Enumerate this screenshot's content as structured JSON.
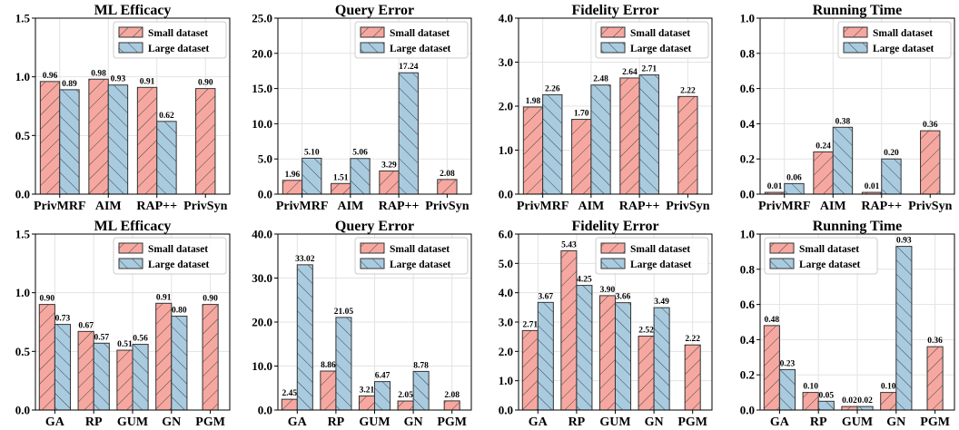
{
  "colors": {
    "small": "#f6a8a0",
    "large": "#a9cbe0",
    "grid": "#e3e3e3",
    "edge": "#333333"
  },
  "legend_labels": [
    "Small dataset",
    "Large dataset"
  ],
  "chart_data": [
    {
      "type": "bar",
      "title": "ML Efficacy",
      "categories": [
        "PrivMRF",
        "AIM",
        "RAP++",
        "PrivSyn"
      ],
      "ylim": [
        0,
        1.5
      ],
      "yticks": [
        "0.0",
        "0.5",
        "1.0",
        "1.5"
      ],
      "legend": "top-right",
      "grid": true,
      "series": [
        {
          "name": "Small dataset",
          "values": [
            0.96,
            0.98,
            0.91,
            0.9
          ],
          "labels": [
            "0.96",
            "0.98",
            "0.91",
            "0.90"
          ]
        },
        {
          "name": "Large dataset",
          "values": [
            0.89,
            0.93,
            0.62,
            null
          ],
          "labels": [
            "0.89",
            "0.93",
            "0.62",
            ""
          ]
        }
      ]
    },
    {
      "type": "bar",
      "title": "Query Error",
      "categories": [
        "PrivMRF",
        "AIM",
        "RAP++",
        "PrivSyn"
      ],
      "ylim": [
        0,
        25
      ],
      "yticks": [
        "0.0",
        "5.0",
        "10.0",
        "15.0",
        "20.0",
        "25.0"
      ],
      "legend": "top-right",
      "grid": true,
      "series": [
        {
          "name": "Small dataset",
          "values": [
            1.96,
            1.51,
            3.29,
            2.08
          ],
          "labels": [
            "1.96",
            "1.51",
            "3.29",
            "2.08"
          ]
        },
        {
          "name": "Large dataset",
          "values": [
            5.1,
            5.06,
            17.24,
            null
          ],
          "labels": [
            "5.10",
            "5.06",
            "17.24",
            ""
          ]
        }
      ]
    },
    {
      "type": "bar",
      "title": "Fidelity Error",
      "categories": [
        "PrivMRF",
        "AIM",
        "RAP++",
        "PrivSyn"
      ],
      "ylim": [
        0,
        4
      ],
      "yticks": [
        "0.0",
        "1.0",
        "2.0",
        "3.0",
        "4.0"
      ],
      "legend": "top-right",
      "grid": true,
      "series": [
        {
          "name": "Small dataset",
          "values": [
            1.98,
            1.7,
            2.64,
            2.22
          ],
          "labels": [
            "1.98",
            "1.70",
            "2.64",
            "2.22"
          ]
        },
        {
          "name": "Large dataset",
          "values": [
            2.26,
            2.48,
            2.71,
            null
          ],
          "labels": [
            "2.26",
            "2.48",
            "2.71",
            ""
          ]
        }
      ]
    },
    {
      "type": "bar",
      "title": "Running Time",
      "categories": [
        "PrivMRF",
        "AIM",
        "RAP++",
        "PrivSyn"
      ],
      "ylim": [
        0,
        1
      ],
      "yticks": [
        "0.0",
        "0.2",
        "0.4",
        "0.6",
        "0.8",
        "1.0"
      ],
      "legend": "top-right",
      "grid": true,
      "series": [
        {
          "name": "Small dataset",
          "values": [
            0.01,
            0.24,
            0.01,
            0.36
          ],
          "labels": [
            "0.01",
            "0.24",
            "0.01",
            "0.36"
          ]
        },
        {
          "name": "Large dataset",
          "values": [
            0.06,
            0.38,
            0.2,
            null
          ],
          "labels": [
            "0.06",
            "0.38",
            "0.20",
            ""
          ]
        }
      ]
    },
    {
      "type": "bar",
      "title": "ML Efficacy",
      "categories": [
        "GA",
        "RP",
        "GUM",
        "GN",
        "PGM"
      ],
      "ylim": [
        0,
        1.5
      ],
      "yticks": [
        "0.0",
        "0.5",
        "1.0",
        "1.5"
      ],
      "legend": "top-right",
      "grid": true,
      "series": [
        {
          "name": "Small dataset",
          "values": [
            0.9,
            0.67,
            0.51,
            0.91,
            0.9
          ],
          "labels": [
            "0.90",
            "0.67",
            "0.51",
            "0.91",
            "0.90"
          ]
        },
        {
          "name": "Large dataset",
          "values": [
            0.73,
            0.57,
            0.56,
            0.8,
            null
          ],
          "labels": [
            "0.73",
            "0.57",
            "0.56",
            "0.80",
            ""
          ]
        }
      ]
    },
    {
      "type": "bar",
      "title": "Query Error",
      "categories": [
        "GA",
        "RP",
        "GUM",
        "GN",
        "PGM"
      ],
      "ylim": [
        0,
        40
      ],
      "yticks": [
        "0.0",
        "10.0",
        "20.0",
        "30.0",
        "40.0"
      ],
      "legend": "top-right",
      "grid": true,
      "series": [
        {
          "name": "Small dataset",
          "values": [
            2.45,
            8.86,
            3.21,
            2.05,
            2.08
          ],
          "labels": [
            "2.45",
            "8.86",
            "3.21",
            "2.05",
            "2.08"
          ]
        },
        {
          "name": "Large dataset",
          "values": [
            33.02,
            21.05,
            6.47,
            8.78,
            null
          ],
          "labels": [
            "33.02",
            "21.05",
            "6.47",
            "8.78",
            ""
          ]
        }
      ]
    },
    {
      "type": "bar",
      "title": "Fidelity Error",
      "categories": [
        "GA",
        "RP",
        "GUM",
        "GN",
        "PGM"
      ],
      "ylim": [
        0,
        6
      ],
      "yticks": [
        "0.0",
        "1.0",
        "2.0",
        "3.0",
        "4.0",
        "5.0",
        "6.0"
      ],
      "legend": "top-right",
      "grid": true,
      "series": [
        {
          "name": "Small dataset",
          "values": [
            2.71,
            5.43,
            3.9,
            2.52,
            2.22
          ],
          "labels": [
            "2.71",
            "5.43",
            "3.90",
            "2.52",
            "2.22"
          ]
        },
        {
          "name": "Large dataset",
          "values": [
            3.67,
            4.25,
            3.66,
            3.49,
            null
          ],
          "labels": [
            "3.67",
            "4.25",
            "3.66",
            "3.49",
            ""
          ]
        }
      ]
    },
    {
      "type": "bar",
      "title": "Running Time",
      "categories": [
        "GA",
        "RP",
        "GUM",
        "GN",
        "PGM"
      ],
      "ylim": [
        0,
        1
      ],
      "yticks": [
        "0.0",
        "0.2",
        "0.4",
        "0.6",
        "0.8",
        "1.0"
      ],
      "legend": "top-left",
      "grid": true,
      "series": [
        {
          "name": "Small dataset",
          "values": [
            0.48,
            0.1,
            0.02,
            0.1,
            0.36
          ],
          "labels": [
            "0.48",
            "0.10",
            "0.02",
            "0.10",
            "0.36"
          ]
        },
        {
          "name": "Large dataset",
          "values": [
            0.23,
            0.05,
            0.02,
            0.93,
            null
          ],
          "labels": [
            "0.23",
            "0.05",
            "0.02",
            "0.93",
            ""
          ]
        }
      ]
    }
  ]
}
